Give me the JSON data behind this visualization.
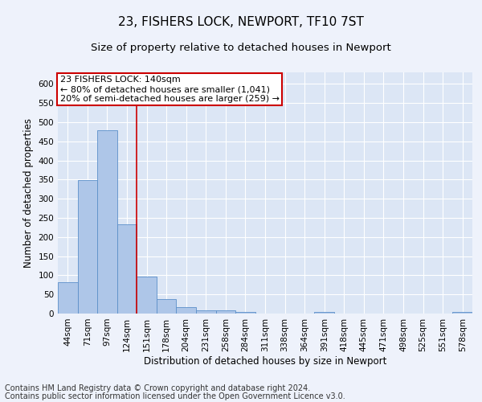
{
  "title": "23, FISHERS LOCK, NEWPORT, TF10 7ST",
  "subtitle": "Size of property relative to detached houses in Newport",
  "xlabel": "Distribution of detached houses by size in Newport",
  "ylabel": "Number of detached properties",
  "footer_line1": "Contains HM Land Registry data © Crown copyright and database right 2024.",
  "footer_line2": "Contains public sector information licensed under the Open Government Licence v3.0.",
  "categories": [
    "44sqm",
    "71sqm",
    "97sqm",
    "124sqm",
    "151sqm",
    "178sqm",
    "204sqm",
    "231sqm",
    "258sqm",
    "284sqm",
    "311sqm",
    "338sqm",
    "364sqm",
    "391sqm",
    "418sqm",
    "445sqm",
    "471sqm",
    "498sqm",
    "525sqm",
    "551sqm",
    "578sqm"
  ],
  "values": [
    82,
    349,
    478,
    234,
    96,
    37,
    16,
    8,
    8,
    5,
    0,
    0,
    0,
    5,
    0,
    0,
    0,
    0,
    0,
    0,
    5
  ],
  "bar_color": "#aec6e8",
  "bar_edge_color": "#5b8fc9",
  "red_line_x": 3.5,
  "annotation_title": "23 FISHERS LOCK: 140sqm",
  "annotation_line1": "← 80% of detached houses are smaller (1,041)",
  "annotation_line2": "20% of semi-detached houses are larger (259) →",
  "annotation_box_color": "#ffffff",
  "annotation_box_edge_color": "#cc0000",
  "ylim": [
    0,
    630
  ],
  "yticks": [
    0,
    50,
    100,
    150,
    200,
    250,
    300,
    350,
    400,
    450,
    500,
    550,
    600
  ],
  "fig_bg_color": "#eef2fb",
  "plot_bg_color": "#dce6f5",
  "grid_color": "#ffffff",
  "title_fontsize": 11,
  "subtitle_fontsize": 9.5,
  "axis_label_fontsize": 8.5,
  "tick_fontsize": 7.5,
  "footer_fontsize": 7,
  "annot_fontsize": 8
}
